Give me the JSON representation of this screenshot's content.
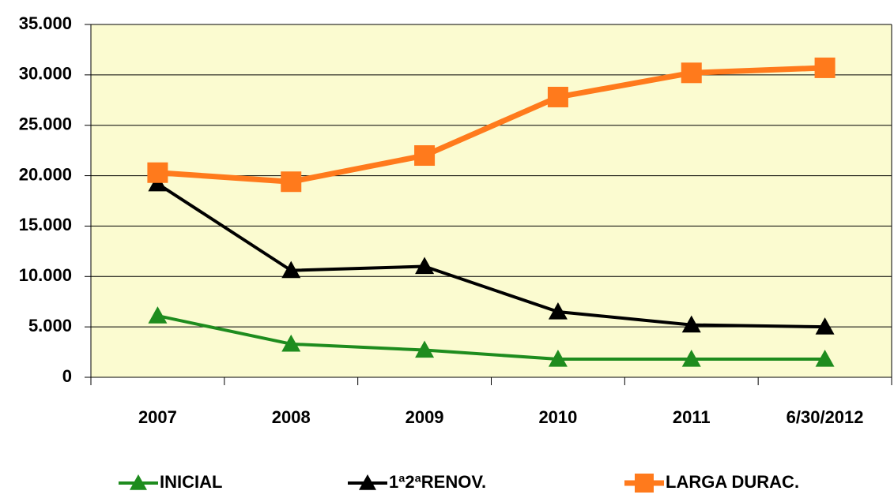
{
  "chart_data": {
    "type": "line",
    "categories": [
      "2007",
      "2008",
      "2009",
      "2010",
      "2011",
      "6/30/2012"
    ],
    "series": [
      {
        "name": "INICIAL",
        "color": "#1e8c1e",
        "marker": "triangle",
        "values": [
          6100,
          3300,
          2700,
          1800,
          1800,
          1800
        ]
      },
      {
        "name": "1ª2ªRENOV.",
        "color": "#000000",
        "marker": "triangle",
        "values": [
          19200,
          10600,
          11000,
          6500,
          5200,
          5000
        ]
      },
      {
        "name": "LARGA DURAC.",
        "color": "#ff7a1c",
        "marker": "square",
        "values": [
          20300,
          19400,
          22000,
          27800,
          30200,
          30700
        ]
      }
    ],
    "ylim": [
      0,
      35000
    ],
    "yticks": [
      0,
      {
        "value": 5000,
        "label": "5.000"
      },
      {
        "value": 10000,
        "label": "10.000"
      },
      {
        "value": 15000,
        "label": "15.000"
      },
      {
        "value": 20000,
        "label": "20.000"
      },
      {
        "value": 25000,
        "label": "25.000"
      },
      {
        "value": 30000,
        "label": "30.000"
      },
      {
        "value": 35000,
        "label": "35.000"
      }
    ],
    "grid": true,
    "legend": "bottom"
  }
}
